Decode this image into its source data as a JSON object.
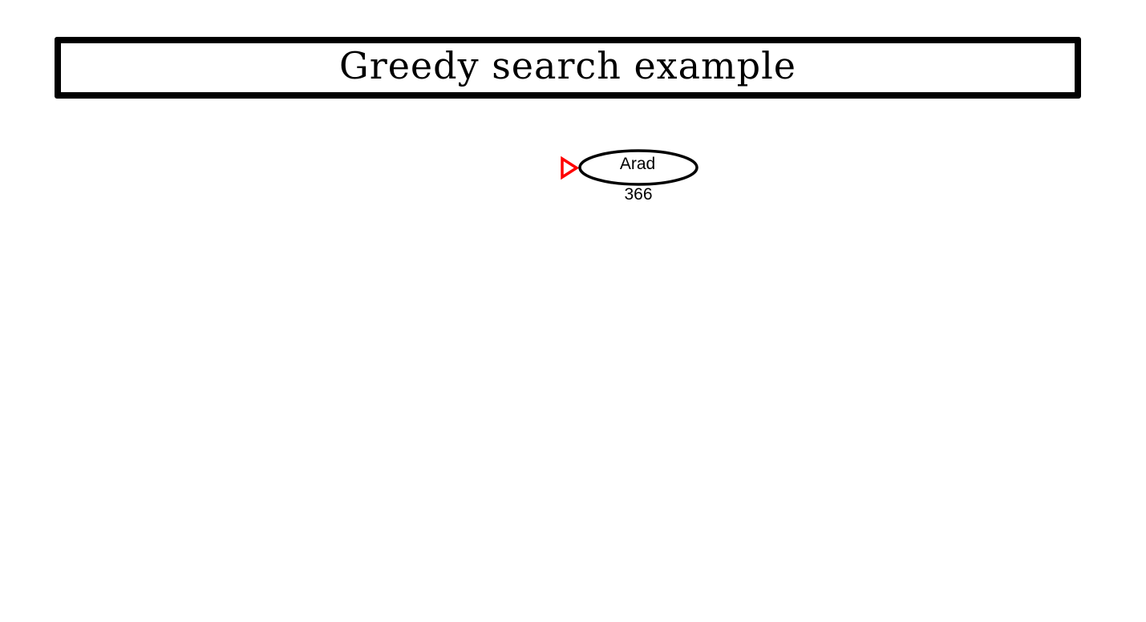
{
  "title": "Greedy search example",
  "tree": {
    "root": {
      "city": "Arad",
      "heuristic": "366",
      "marked_for_expansion": true
    }
  },
  "colors": {
    "node_outline": "#000000",
    "expansion_marker": "#ff0000",
    "title_border": "#000000"
  },
  "icons": {
    "expansion_marker": "red-triangle-marker-icon"
  }
}
